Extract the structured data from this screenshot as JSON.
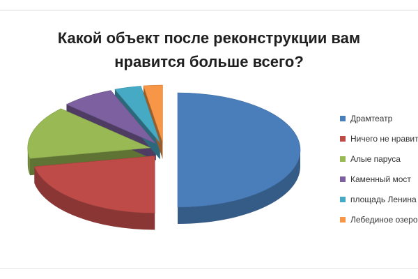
{
  "chart_data": {
    "type": "pie",
    "style": "3d-exploded",
    "title": "Какой объект после реконструкции вам нравится больше всего?",
    "title_lines": [
      "Какой объект после реконструкции вам",
      "нравится больше всего?"
    ],
    "legend_position": "right",
    "slices": [
      {
        "label": "Драмтеатр",
        "value": 50,
        "color": "#4a7ebb"
      },
      {
        "label": "Ничего не нравится",
        "value": 22,
        "color": "#be4b48"
      },
      {
        "label": "Алые паруса",
        "value": 15,
        "color": "#98b954"
      },
      {
        "label": "Каменный мост",
        "value": 7,
        "color": "#7d60a0"
      },
      {
        "label": "площадь Ленина",
        "value": 3.5,
        "color": "#46aac5"
      },
      {
        "label": "Лебединое озеро",
        "value": 2.5,
        "color": "#f79646"
      }
    ]
  }
}
